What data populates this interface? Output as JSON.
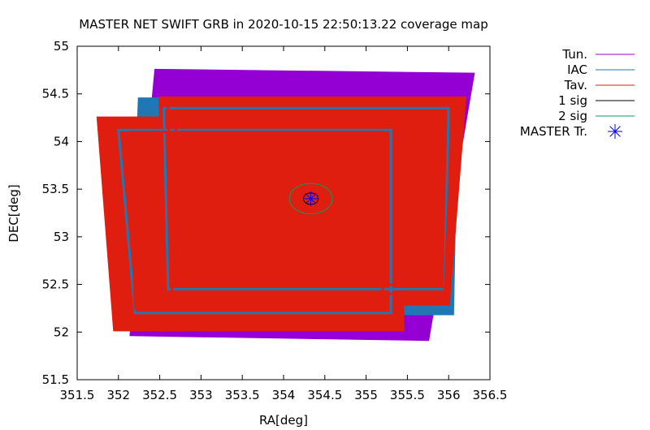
{
  "chart_data": {
    "type": "scatter",
    "title": "MASTER NET SWIFT GRB in 2020-10-15 22:50:13.22 coverage map",
    "xlabel": "RA[deg]",
    "ylabel": "DEC[deg]",
    "xlim": [
      351.5,
      356.5
    ],
    "ylim": [
      51.5,
      55
    ],
    "xticks": [
      "351.5",
      "352",
      "352.5",
      "353",
      "353.5",
      "354",
      "354.5",
      "355",
      "355.5",
      "356",
      "356.5"
    ],
    "yticks": [
      "51.5",
      "52",
      "52.5",
      "53",
      "53.5",
      "54",
      "54.5",
      "55"
    ],
    "legend_position": "outside-top-right",
    "series": [
      {
        "name": "Tun.",
        "color": "#9400d3",
        "fields": [
          {
            "corners": [
              [
                352.5,
                54.72
              ],
              [
                356.25,
                54.68
              ],
              [
                355.7,
                51.95
              ],
              [
                352.2,
                52.0
              ]
            ],
            "inner": [
              [
                352.55,
                54.6
              ],
              [
                356.1,
                54.55
              ],
              [
                355.55,
                52.1
              ],
              [
                352.35,
                52.15
              ]
            ]
          }
        ]
      },
      {
        "name": "IAC",
        "color": "#1f77b4",
        "fields": [
          {
            "corners": [
              [
                352.3,
                54.42
              ],
              [
                356.05,
                54.42
              ],
              [
                356.0,
                52.22
              ],
              [
                352.2,
                52.22
              ]
            ]
          }
        ]
      },
      {
        "name": "Tav.",
        "color": "#e01e10",
        "fields": [
          {
            "corners": [
              [
                352.55,
                54.43
              ],
              [
                356.15,
                54.43
              ],
              [
                355.95,
                52.32
              ],
              [
                352.6,
                52.32
              ]
            ]
          },
          {
            "corners": [
              [
                351.8,
                54.22
              ],
              [
                355.35,
                54.22
              ],
              [
                355.4,
                52.05
              ],
              [
                352.0,
                52.05
              ]
            ]
          }
        ]
      },
      {
        "name": "1 sig",
        "color": "#000000",
        "ellipse": {
          "center": [
            354.33,
            53.4
          ],
          "rx": 0.09,
          "ry": 0.06
        }
      },
      {
        "name": "2 sig",
        "color": "#00a060",
        "ellipse": {
          "center": [
            354.33,
            53.4
          ],
          "rx": 0.26,
          "ry": 0.16
        }
      },
      {
        "name": "MASTER Tr.",
        "color": "#0000ff",
        "marker": "star",
        "points": [
          [
            354.33,
            53.4
          ]
        ]
      }
    ]
  }
}
